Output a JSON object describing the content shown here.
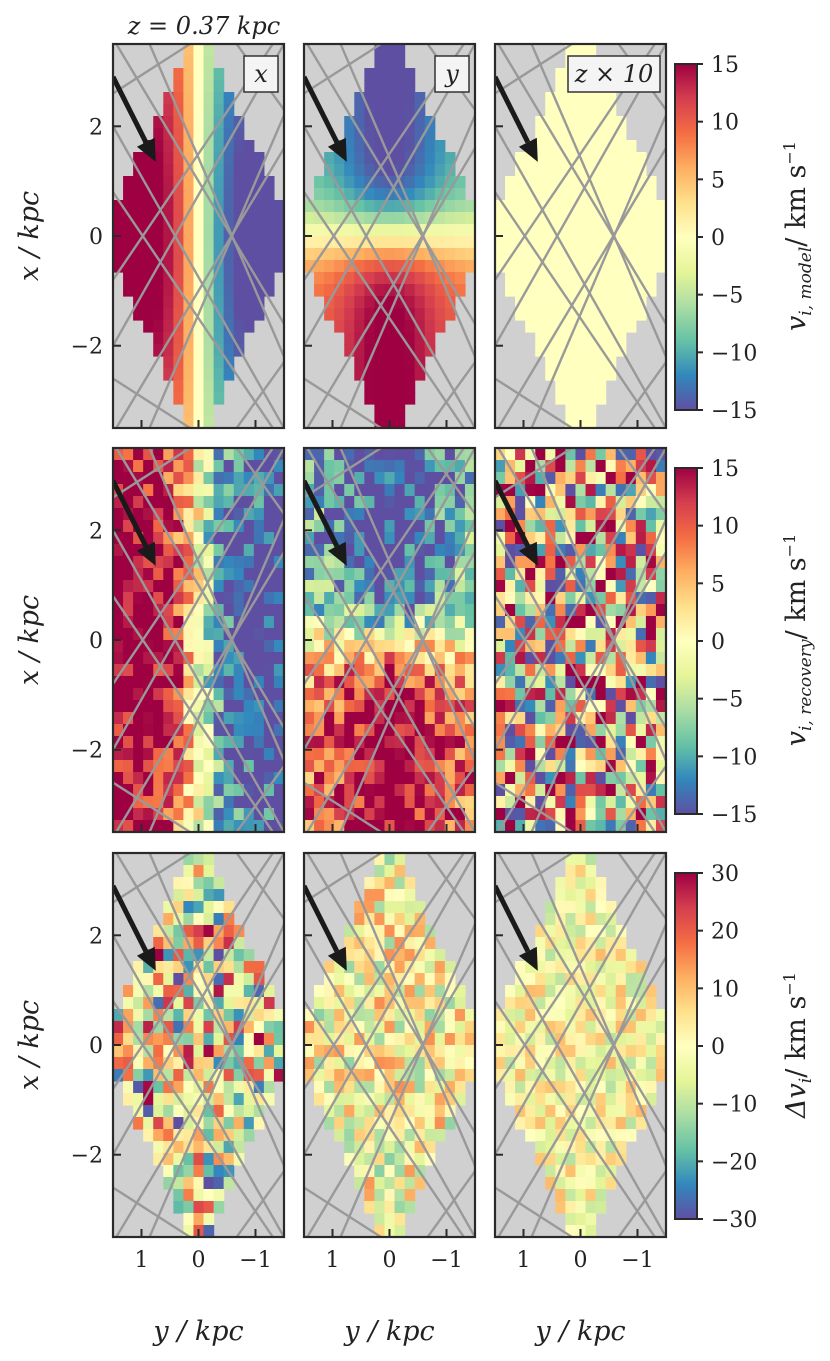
{
  "figure_title": "z = 0.37 kpc",
  "column_tags": [
    "x",
    "y",
    "z × 10"
  ],
  "axis_labels": {
    "x": "y / kpc",
    "y": "x / kpc"
  },
  "colors": {
    "masked": "#d0d0d0",
    "trajectory": "#999999",
    "arrow": "#1a1a1a",
    "frame": "#2a2a2a",
    "colormap": [
      "#5e4fa2",
      "#3288bd",
      "#66c2a5",
      "#abdda4",
      "#e6f598",
      "#ffffbf",
      "#fee08b",
      "#fdae61",
      "#f46d43",
      "#d53e4f",
      "#9e0142"
    ]
  },
  "chart_data": {
    "type": "heatmap",
    "title": "z = 0.37 kpc",
    "xlabel": "y / kpc",
    "ylabel": "x / kpc",
    "xlim": [
      1.5,
      -1.5
    ],
    "ylim": [
      -3.5,
      3.5
    ],
    "xticks": [
      1,
      0,
      -1
    ],
    "xtick_labels": [
      "1",
      "0",
      "−1"
    ],
    "yticks": [
      2,
      0,
      -2
    ],
    "ytick_labels": [
      "2",
      "0",
      "−2"
    ],
    "grid": {
      "nx": 17,
      "ny": 32
    },
    "arrow": {
      "from": [
        1.5,
        2.9
      ],
      "to": [
        0.75,
        1.35
      ]
    },
    "columns": [
      "x",
      "y",
      "z × 10"
    ],
    "rows": [
      {
        "name": "model",
        "colorbar_label": "v_i,model / km s⁻¹",
        "clim": [
          -15,
          15
        ],
        "cb_ticks": [
          15,
          10,
          5,
          0,
          -5,
          -10,
          -15
        ],
        "cb_tick_labels": [
          "15",
          "10",
          "5",
          "0",
          "−5",
          "−10",
          "−15"
        ],
        "cb_title": "v",
        "cb_sub": "i, model",
        "cb_unit": "/ km s",
        "cb_exp": "−1"
      },
      {
        "name": "recovery",
        "colorbar_label": "v_i,recovery / km s⁻¹",
        "clim": [
          -15,
          15
        ],
        "cb_ticks": [
          15,
          10,
          5,
          0,
          -5,
          -10,
          -15
        ],
        "cb_tick_labels": [
          "15",
          "10",
          "5",
          "0",
          "−5",
          "−10",
          "−15"
        ],
        "cb_title": "v",
        "cb_sub": "i, recovery",
        "cb_unit": "/ km s",
        "cb_exp": "−1"
      },
      {
        "name": "difference",
        "colorbar_label": "Δv_i / km s⁻¹",
        "clim": [
          -30,
          30
        ],
        "cb_ticks": [
          30,
          20,
          10,
          0,
          -10,
          -20,
          -30
        ],
        "cb_tick_labels": [
          "30",
          "20",
          "10",
          "0",
          "−10",
          "−20",
          "−30"
        ],
        "cb_title": "Δv",
        "cb_sub": "i",
        "cb_unit": "/ km s",
        "cb_exp": "−1"
      }
    ]
  }
}
